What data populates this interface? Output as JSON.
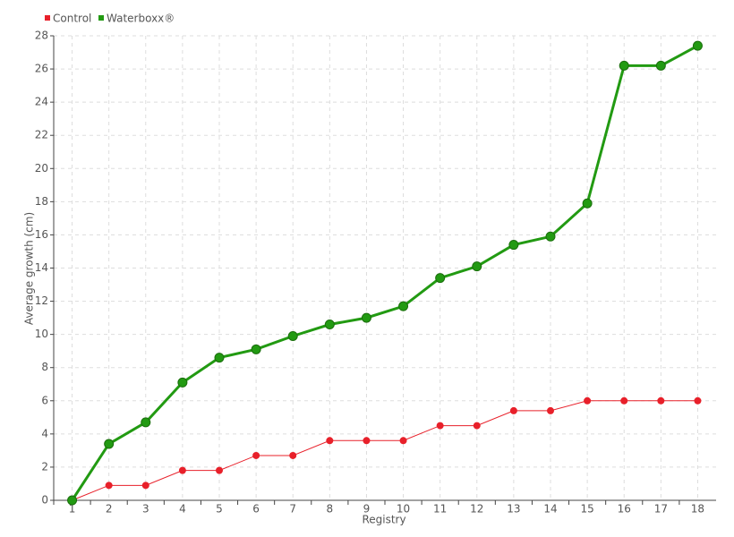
{
  "chart_data": {
    "type": "line",
    "x_label": "Registry",
    "y_label": "Average growth (cm)",
    "categories": [
      "1",
      "2",
      "3",
      "4",
      "5",
      "6",
      "7",
      "8",
      "9",
      "10",
      "11",
      "12",
      "13",
      "14",
      "15",
      "16",
      "17",
      "18"
    ],
    "series": [
      {
        "name": "Control",
        "color": "#e8202a",
        "values": [
          0,
          0.9,
          0.9,
          1.8,
          1.8,
          2.7,
          2.7,
          3.6,
          3.6,
          3.6,
          4.5,
          4.5,
          5.4,
          5.4,
          6,
          6,
          6,
          6
        ]
      },
      {
        "name": "Waterboxx®",
        "color": "#229a12",
        "values": [
          0,
          3.4,
          4.7,
          7.1,
          8.6,
          9.1,
          9.9,
          10.6,
          11.0,
          11.7,
          13.4,
          14.1,
          15.4,
          15.9,
          17.9,
          26.2,
          26.2,
          27.4
        ]
      }
    ],
    "ylim": [
      0,
      28
    ],
    "yticks": [
      0,
      2,
      4,
      6,
      8,
      10,
      12,
      14,
      16,
      18,
      20,
      22,
      24,
      26,
      28
    ],
    "grid": true,
    "legend": "top-left"
  }
}
